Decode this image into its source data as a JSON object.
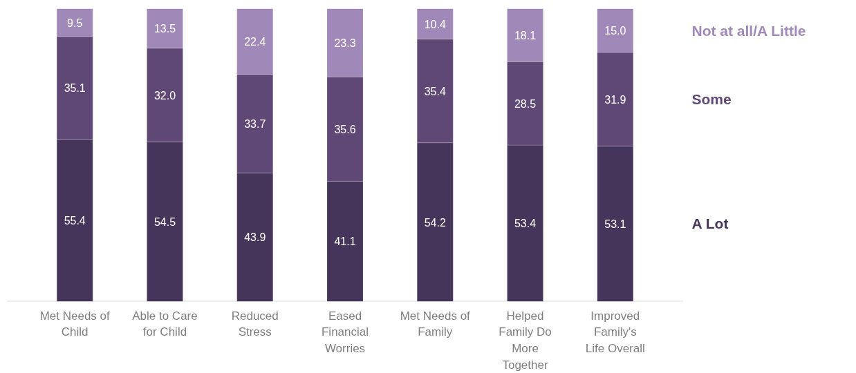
{
  "chart_data": {
    "type": "bar",
    "stacked": true,
    "tick_labels": "x",
    "grid": false,
    "ylim": [
      0,
      100
    ],
    "categories": [
      "Met Needs of Child",
      "Able to Care for Child",
      "Reduced Stress",
      "Eased Financial Worries",
      "Met Needs of Family",
      "Helped Family Do More Together",
      "Improved Family's Life Overall"
    ],
    "series": [
      {
        "name": "A Lot",
        "color": "#46355a",
        "values": [
          55.4,
          54.5,
          43.9,
          41.1,
          54.2,
          53.4,
          53.1
        ],
        "value_labels": [
          "55.4",
          "54.5",
          "43.9",
          "41.1",
          "54.2",
          "53.4",
          "53.1"
        ]
      },
      {
        "name": "Some",
        "color": "#5f4876",
        "values": [
          35.1,
          32.0,
          33.7,
          35.6,
          35.4,
          28.5,
          31.9
        ],
        "value_labels": [
          "35.1",
          "32.0",
          "33.7",
          "35.6",
          "35.4",
          "28.5",
          "31.9"
        ]
      },
      {
        "name": "Not at all/A Little",
        "color": "#a089b8",
        "values": [
          9.5,
          13.5,
          22.4,
          23.3,
          10.4,
          18.1,
          15.0
        ],
        "value_labels": [
          "9.5",
          "13.5",
          "22.4",
          "23.3",
          "10.4",
          "18.1",
          "15.0"
        ]
      }
    ]
  }
}
